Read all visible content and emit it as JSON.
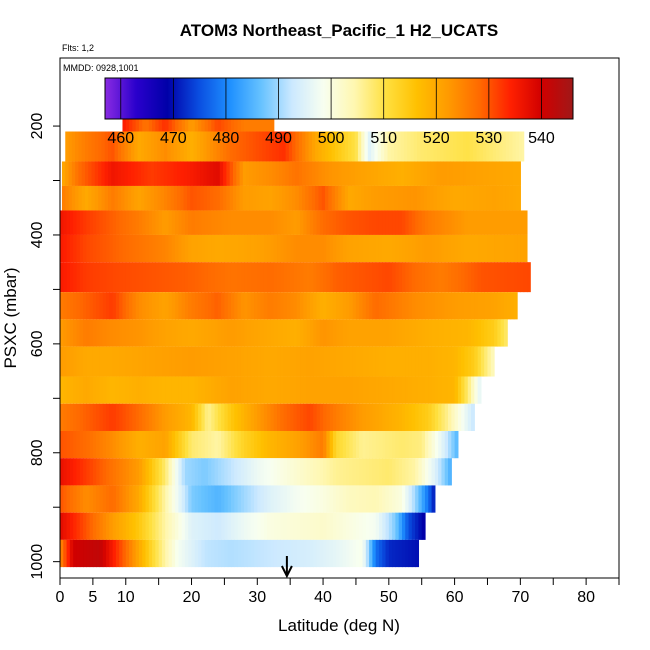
{
  "chart_data": {
    "type": "heatmap",
    "title": "ATOM3 Northeast_Pacific_1 H2_UCATS",
    "annotations": {
      "flights": "Flts: 1,2",
      "dates": "MMDD: 0928,1001"
    },
    "xlabel": "Latitude (deg N)",
    "ylabel": "PSXC (mbar)",
    "xlim": [
      0,
      85
    ],
    "ylim": [
      1030,
      75
    ],
    "y_reversed": true,
    "grid": false,
    "x_ticks": [
      0,
      5,
      10,
      20,
      30,
      40,
      50,
      60,
      70,
      80
    ],
    "x_minor_ticks": [
      15,
      25,
      35,
      45,
      55,
      65,
      75,
      85
    ],
    "y_ticks": [
      200,
      400,
      600,
      800,
      1000
    ],
    "y_minor_ticks": [
      300,
      500,
      700,
      900
    ],
    "colorbar": {
      "min": 457,
      "max": 546,
      "ticks": [
        460,
        470,
        480,
        490,
        500,
        510,
        520,
        530,
        540
      ],
      "placement": "top",
      "colors": [
        "#8a2be2",
        "#2a00cc",
        "#0000a8",
        "#0a4de0",
        "#1e90ff",
        "#66c2ff",
        "#cce9ff",
        "#f8fff0",
        "#fff7b0",
        "#ffe040",
        "#ffc000",
        "#ff9a00",
        "#ff6a00",
        "#ff2000",
        "#d00000",
        "#a01818"
      ]
    },
    "marker": {
      "label": "arrow",
      "latitude": 34.5
    },
    "layers": [
      {
        "p_top": 160,
        "p_bot": 210,
        "lat_start": 9.5,
        "lat_end": 32.5,
        "segments": [
          [
            9.5,
            535
          ],
          [
            13,
            527
          ],
          [
            16,
            533
          ],
          [
            20,
            522
          ],
          [
            24,
            531
          ],
          [
            28,
            526
          ],
          [
            32.5,
            526
          ]
        ]
      },
      {
        "p_top": 210,
        "p_bot": 265,
        "lat_start": 0.8,
        "lat_end": 70.5,
        "segments": [
          [
            0.8,
            522
          ],
          [
            4,
            526
          ],
          [
            8,
            530
          ],
          [
            12,
            520
          ],
          [
            16,
            524
          ],
          [
            20,
            519
          ],
          [
            26,
            528
          ],
          [
            34,
            533
          ],
          [
            39,
            520
          ],
          [
            45,
            510
          ],
          [
            47,
            495
          ],
          [
            50,
            505
          ],
          [
            55,
            508
          ],
          [
            62,
            510
          ],
          [
            70.5,
            505
          ]
        ]
      },
      {
        "p_top": 265,
        "p_bot": 310,
        "lat_start": 0.3,
        "lat_end": 70,
        "segments": [
          [
            0.3,
            520
          ],
          [
            3,
            528
          ],
          [
            8,
            536
          ],
          [
            14,
            532
          ],
          [
            20,
            535
          ],
          [
            24,
            538
          ],
          [
            28,
            522
          ],
          [
            32,
            524
          ],
          [
            36,
            527
          ],
          [
            41,
            523
          ],
          [
            46,
            521
          ],
          [
            52,
            519
          ],
          [
            58,
            522
          ],
          [
            64,
            521
          ],
          [
            70,
            520
          ]
        ]
      },
      {
        "p_top": 310,
        "p_bot": 355,
        "lat_start": 0.3,
        "lat_end": 70,
        "segments": [
          [
            0.3,
            526
          ],
          [
            4,
            520
          ],
          [
            8,
            526
          ],
          [
            12,
            521
          ],
          [
            16,
            525
          ],
          [
            20,
            530
          ],
          [
            24,
            528
          ],
          [
            28,
            522
          ],
          [
            32,
            521
          ],
          [
            36,
            524
          ],
          [
            40,
            530
          ],
          [
            44,
            520
          ],
          [
            48,
            522
          ],
          [
            54,
            523
          ],
          [
            60,
            520
          ],
          [
            66,
            521
          ],
          [
            70,
            520
          ]
        ]
      },
      {
        "p_top": 355,
        "p_bot": 400,
        "lat_start": 0,
        "lat_end": 71,
        "segments": [
          [
            0,
            536
          ],
          [
            4,
            532
          ],
          [
            8,
            529
          ],
          [
            12,
            526
          ],
          [
            16,
            522
          ],
          [
            20,
            526
          ],
          [
            26,
            524
          ],
          [
            32,
            524
          ],
          [
            36,
            522
          ],
          [
            40,
            528
          ],
          [
            44,
            530
          ],
          [
            48,
            531
          ],
          [
            52,
            531
          ],
          [
            56,
            526
          ],
          [
            62,
            522
          ],
          [
            71,
            522
          ]
        ]
      },
      {
        "p_top": 400,
        "p_bot": 450,
        "lat_start": 0,
        "lat_end": 71,
        "segments": [
          [
            0,
            535
          ],
          [
            4,
            531
          ],
          [
            8,
            529
          ],
          [
            12,
            527
          ],
          [
            16,
            525
          ],
          [
            20,
            521
          ],
          [
            24,
            520
          ],
          [
            30,
            521
          ],
          [
            36,
            524
          ],
          [
            40,
            524
          ],
          [
            44,
            521
          ],
          [
            50,
            520
          ],
          [
            56,
            522
          ],
          [
            62,
            520
          ],
          [
            71,
            521
          ]
        ]
      },
      {
        "p_top": 450,
        "p_bot": 505,
        "lat_start": 0,
        "lat_end": 71.5,
        "segments": [
          [
            0,
            535
          ],
          [
            4,
            532
          ],
          [
            8,
            531
          ],
          [
            14,
            530
          ],
          [
            20,
            529
          ],
          [
            26,
            527
          ],
          [
            32,
            528
          ],
          [
            38,
            526
          ],
          [
            42,
            529
          ],
          [
            46,
            530
          ],
          [
            50,
            531
          ],
          [
            54,
            528
          ],
          [
            58,
            526
          ],
          [
            64,
            530
          ],
          [
            71.5,
            531
          ]
        ]
      },
      {
        "p_top": 505,
        "p_bot": 555,
        "lat_start": 0,
        "lat_end": 69.5,
        "segments": [
          [
            0,
            526
          ],
          [
            4,
            529
          ],
          [
            8,
            532
          ],
          [
            12,
            524
          ],
          [
            16,
            521
          ],
          [
            20,
            526
          ],
          [
            24,
            529
          ],
          [
            28,
            523
          ],
          [
            32,
            526
          ],
          [
            36,
            524
          ],
          [
            40,
            519
          ],
          [
            44,
            522
          ],
          [
            48,
            528
          ],
          [
            54,
            524
          ],
          [
            60,
            522
          ],
          [
            66,
            521
          ],
          [
            69.5,
            519
          ]
        ]
      },
      {
        "p_top": 555,
        "p_bot": 605,
        "lat_start": 0,
        "lat_end": 68,
        "segments": [
          [
            0,
            522
          ],
          [
            4,
            526
          ],
          [
            8,
            524
          ],
          [
            12,
            523
          ],
          [
            16,
            521
          ],
          [
            20,
            520
          ],
          [
            26,
            522
          ],
          [
            32,
            520
          ],
          [
            36,
            519
          ],
          [
            40,
            523
          ],
          [
            44,
            521
          ],
          [
            50,
            521
          ],
          [
            56,
            519
          ],
          [
            62,
            518
          ],
          [
            66,
            514
          ],
          [
            68,
            508
          ]
        ]
      },
      {
        "p_top": 605,
        "p_bot": 660,
        "lat_start": 0,
        "lat_end": 66,
        "segments": [
          [
            0,
            522
          ],
          [
            4,
            520
          ],
          [
            8,
            520
          ],
          [
            14,
            521
          ],
          [
            20,
            522
          ],
          [
            26,
            521
          ],
          [
            32,
            520
          ],
          [
            38,
            521
          ],
          [
            44,
            520
          ],
          [
            50,
            519
          ],
          [
            56,
            519
          ],
          [
            60,
            518
          ],
          [
            63,
            514
          ],
          [
            66,
            503
          ]
        ]
      },
      {
        "p_top": 660,
        "p_bot": 710,
        "lat_start": 0,
        "lat_end": 64,
        "segments": [
          [
            0,
            518
          ],
          [
            4,
            520
          ],
          [
            8,
            518
          ],
          [
            12,
            519
          ],
          [
            16,
            518
          ],
          [
            20,
            518
          ],
          [
            26,
            521
          ],
          [
            32,
            520
          ],
          [
            38,
            521
          ],
          [
            44,
            521
          ],
          [
            50,
            520
          ],
          [
            56,
            519
          ],
          [
            60,
            518
          ],
          [
            62,
            508
          ],
          [
            64,
            495
          ]
        ]
      },
      {
        "p_top": 710,
        "p_bot": 760,
        "lat_start": 0,
        "lat_end": 63,
        "segments": [
          [
            0,
            526
          ],
          [
            4,
            529
          ],
          [
            8,
            532
          ],
          [
            12,
            528
          ],
          [
            16,
            522
          ],
          [
            20,
            518
          ],
          [
            22.5,
            506
          ],
          [
            26,
            515
          ],
          [
            30,
            522
          ],
          [
            34,
            528
          ],
          [
            38,
            531
          ],
          [
            42,
            526
          ],
          [
            46,
            522
          ],
          [
            52,
            518
          ],
          [
            56,
            514
          ],
          [
            59,
            506
          ],
          [
            61,
            499
          ],
          [
            63,
            492
          ]
        ]
      },
      {
        "p_top": 760,
        "p_bot": 810,
        "lat_start": 0,
        "lat_end": 60.5,
        "segments": [
          [
            0,
            530
          ],
          [
            4,
            528
          ],
          [
            8,
            524
          ],
          [
            12,
            519
          ],
          [
            16,
            521
          ],
          [
            20,
            508
          ],
          [
            24,
            505
          ],
          [
            28,
            513
          ],
          [
            32,
            518
          ],
          [
            36,
            521
          ],
          [
            40,
            526
          ],
          [
            42,
            512
          ],
          [
            46,
            506
          ],
          [
            52,
            508
          ],
          [
            55,
            507
          ],
          [
            58,
            496
          ],
          [
            60.5,
            485
          ]
        ]
      },
      {
        "p_top": 810,
        "p_bot": 860,
        "lat_start": 0,
        "lat_end": 59.5,
        "segments": [
          [
            0,
            537
          ],
          [
            4,
            532
          ],
          [
            8,
            527
          ],
          [
            12,
            522
          ],
          [
            16,
            508
          ],
          [
            19,
            490
          ],
          [
            22,
            488
          ],
          [
            26,
            492
          ],
          [
            30,
            497
          ],
          [
            34,
            500
          ],
          [
            38,
            503
          ],
          [
            42,
            506
          ],
          [
            46,
            507
          ],
          [
            50,
            508
          ],
          [
            54,
            505
          ],
          [
            57,
            495
          ],
          [
            59.5,
            484
          ]
        ]
      },
      {
        "p_top": 860,
        "p_bot": 910,
        "lat_start": 0,
        "lat_end": 57,
        "segments": [
          [
            0,
            530
          ],
          [
            4,
            524
          ],
          [
            8,
            528
          ],
          [
            12,
            520
          ],
          [
            16,
            505
          ],
          [
            20,
            488
          ],
          [
            24,
            485
          ],
          [
            28,
            490
          ],
          [
            32,
            495
          ],
          [
            36,
            498
          ],
          [
            40,
            500
          ],
          [
            44,
            503
          ],
          [
            48,
            504
          ],
          [
            52,
            500
          ],
          [
            54,
            490
          ],
          [
            56,
            478
          ],
          [
            57,
            470
          ]
        ]
      },
      {
        "p_top": 910,
        "p_bot": 960,
        "lat_start": 0,
        "lat_end": 55.5,
        "segments": [
          [
            0,
            538
          ],
          [
            4,
            530
          ],
          [
            8,
            522
          ],
          [
            12,
            515
          ],
          [
            16,
            505
          ],
          [
            20,
            495
          ],
          [
            24,
            493
          ],
          [
            28,
            497
          ],
          [
            32,
            500
          ],
          [
            36,
            501
          ],
          [
            40,
            502
          ],
          [
            44,
            500
          ],
          [
            48,
            498
          ],
          [
            51,
            488
          ],
          [
            53,
            475
          ],
          [
            55.5,
            468
          ]
        ]
      },
      {
        "p_top": 960,
        "p_bot": 1010,
        "lat_start": 0,
        "lat_end": 54.5,
        "segments": [
          [
            0,
            524
          ],
          [
            2,
            540
          ],
          [
            6,
            542
          ],
          [
            10,
            528
          ],
          [
            14,
            512
          ],
          [
            18,
            498
          ],
          [
            22,
            492
          ],
          [
            26,
            491
          ],
          [
            30,
            492
          ],
          [
            34,
            493
          ],
          [
            38,
            494
          ],
          [
            42,
            496
          ],
          [
            46,
            499
          ],
          [
            48,
            478
          ],
          [
            50,
            472
          ],
          [
            54.5,
            470
          ]
        ]
      }
    ]
  }
}
